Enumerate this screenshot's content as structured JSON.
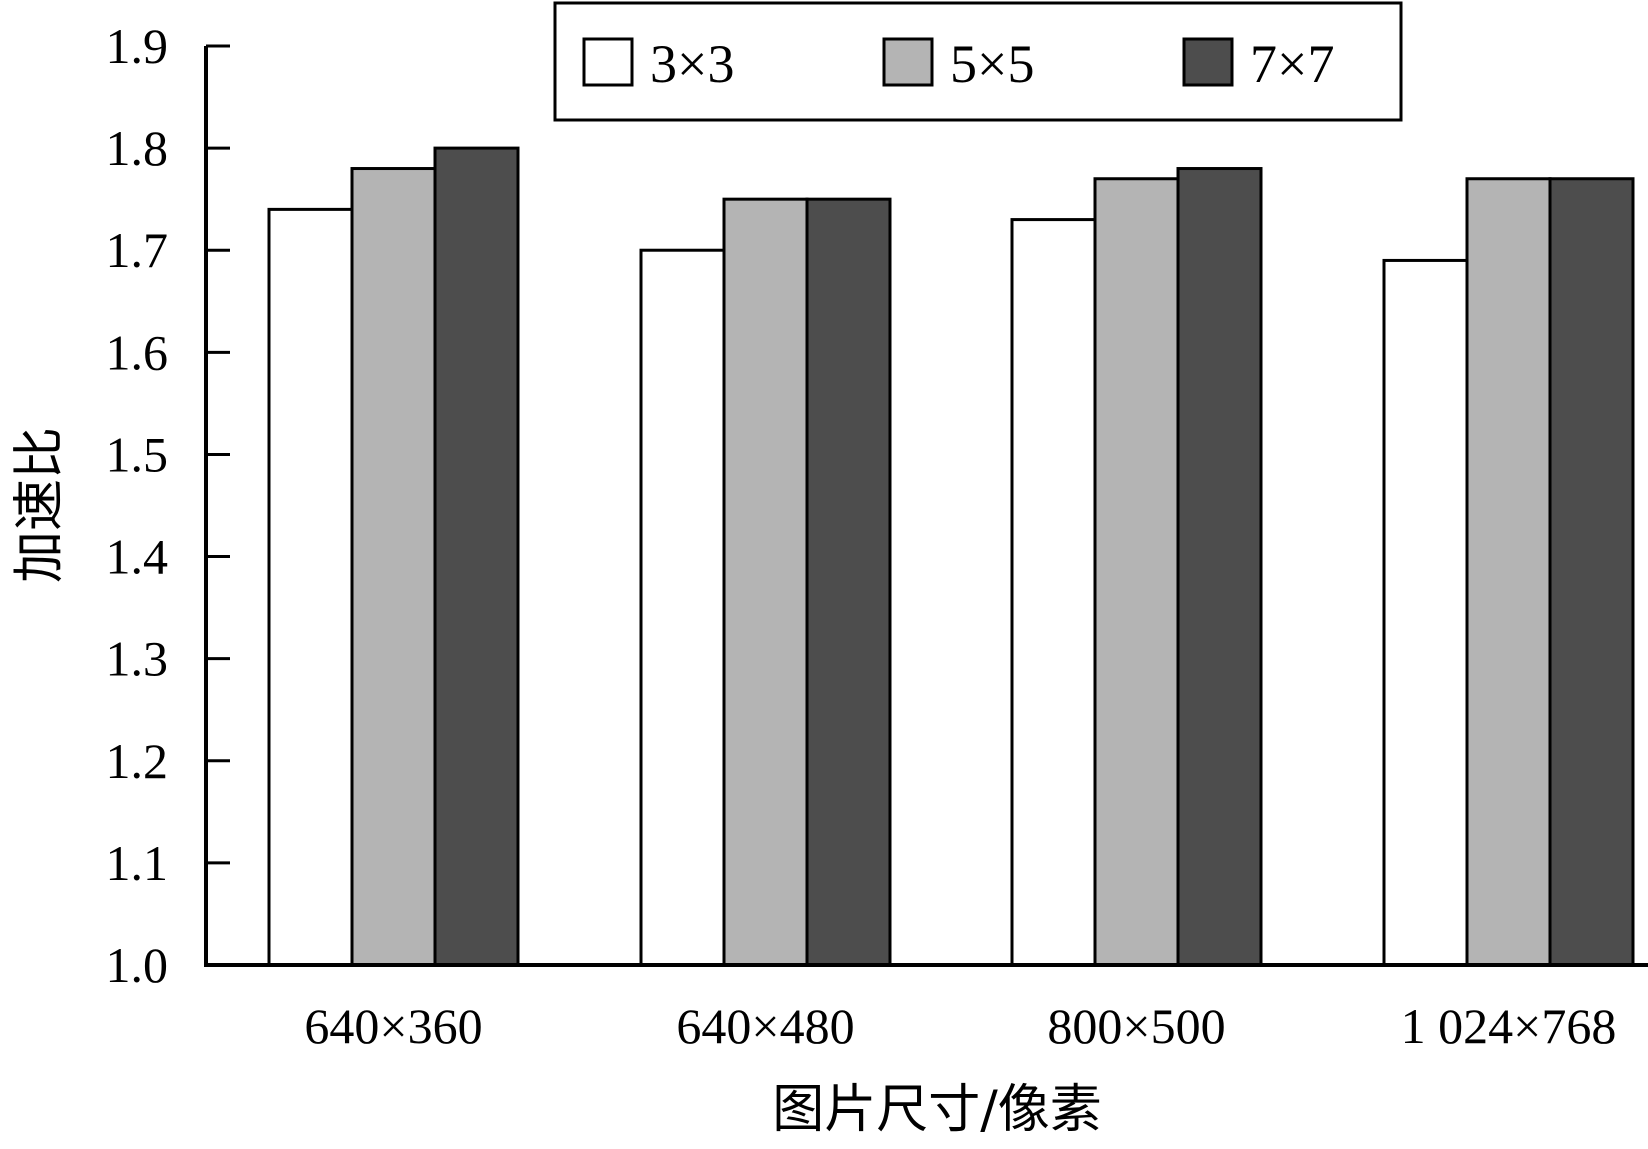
{
  "chart_data": {
    "type": "bar",
    "categories": [
      "640×360",
      "640×480",
      "800×500",
      "1 024×768"
    ],
    "series": [
      {
        "name": "3×3",
        "color": "#ffffff",
        "values": [
          1.74,
          1.7,
          1.73,
          1.69
        ]
      },
      {
        "name": "5×5",
        "color": "#b4b4b4",
        "values": [
          1.78,
          1.75,
          1.77,
          1.77
        ]
      },
      {
        "name": "7×7",
        "color": "#4d4d4d",
        "values": [
          1.8,
          1.75,
          1.78,
          1.77
        ]
      }
    ],
    "xlabel": "图片尺寸/像素",
    "ylabel": "加速比",
    "ylim": [
      1.0,
      1.9
    ],
    "yticks": [
      "1.0",
      "1.1",
      "1.2",
      "1.3",
      "1.4",
      "1.5",
      "1.6",
      "1.7",
      "1.8",
      "1.9"
    ],
    "grid": false,
    "legend_position": "top-center"
  }
}
